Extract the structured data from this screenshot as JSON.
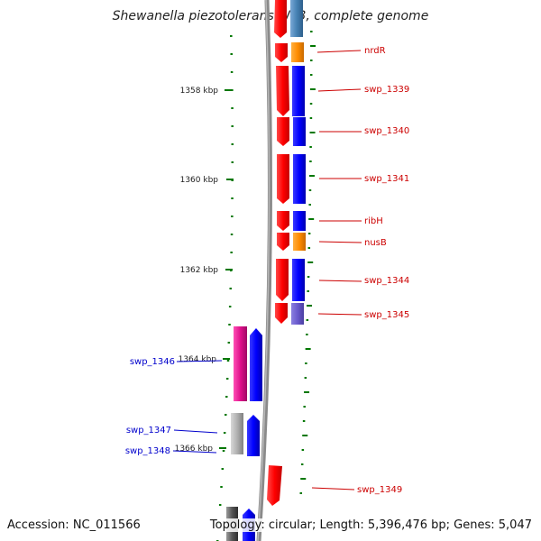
{
  "title": "Shewanella piezotolerans WP3, complete genome",
  "accession": "Accession: NC_011566",
  "topology": "Topology: circular; Length: 5,396,476 bp; Genes: 5,047",
  "kbp_labels": [
    "1358 kbp",
    "1360 kbp",
    "1362 kbp",
    "1364 kbp",
    "1366 kbp"
  ],
  "genes": [
    {
      "label": "nrdR",
      "side": "right",
      "color": "#cc0000"
    },
    {
      "label": "swp_1339",
      "side": "right",
      "color": "#cc0000"
    },
    {
      "label": "swp_1340",
      "side": "right",
      "color": "#cc0000"
    },
    {
      "label": "swp_1341",
      "side": "right",
      "color": "#cc0000"
    },
    {
      "label": "ribH",
      "side": "right",
      "color": "#cc0000"
    },
    {
      "label": "nusB",
      "side": "right",
      "color": "#cc0000"
    },
    {
      "label": "swp_1344",
      "side": "right",
      "color": "#cc0000"
    },
    {
      "label": "swp_1345",
      "side": "right",
      "color": "#cc0000"
    },
    {
      "label": "swp_1346",
      "side": "left",
      "color": "#0000cc"
    },
    {
      "label": "swp_1347",
      "side": "left",
      "color": "#0000cc"
    },
    {
      "label": "swp_1348",
      "side": "left",
      "color": "#0000cc"
    },
    {
      "label": "swp_1349",
      "side": "right",
      "color": "#cc0000"
    }
  ],
  "colors": {
    "forward_gene": "#ff0000",
    "cog_blue": "#0000ff",
    "cog_orange": "#ff8c00",
    "cog_lightblue": "#4682b4",
    "cog_purple": "#6a5acd",
    "cog_magenta": "#e0118c",
    "cog_gray": "#b0b0b0",
    "backbone": "#8a8a8a",
    "tick": "#007700"
  }
}
